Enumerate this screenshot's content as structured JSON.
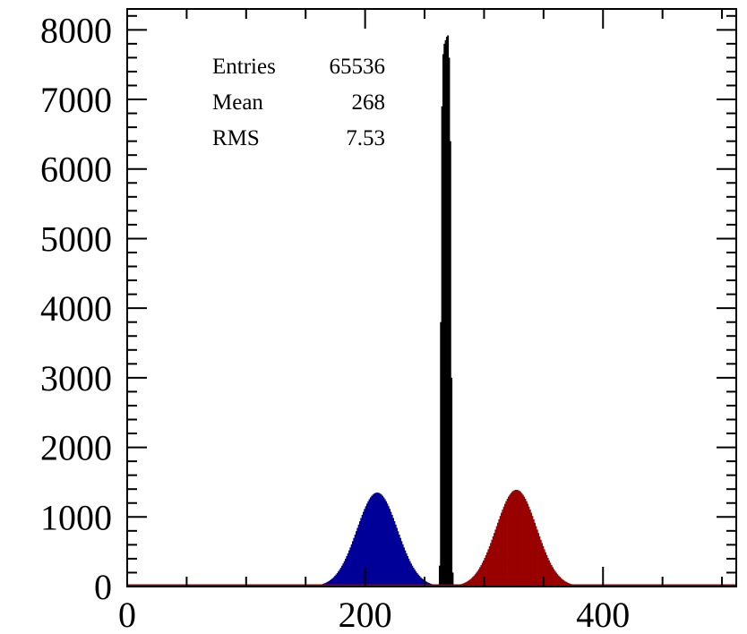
{
  "chart_data": {
    "type": "histogram",
    "xlim": [
      0,
      512
    ],
    "ylim": [
      0,
      8300
    ],
    "x_ticks": [
      0,
      200,
      400
    ],
    "x_tick_labels": [
      "0",
      "200",
      "400"
    ],
    "y_ticks": [
      0,
      1000,
      2000,
      3000,
      4000,
      5000,
      6000,
      7000,
      8000
    ],
    "y_tick_labels": [
      "0",
      "1000",
      "2000",
      "3000",
      "4000",
      "5000",
      "6000",
      "7000",
      "8000"
    ],
    "grid": false,
    "stats_box": [
      {
        "label": "Entries",
        "value": "65536"
      },
      {
        "label": "Mean",
        "value": "268"
      },
      {
        "label": "RMS",
        "value": "7.53"
      }
    ],
    "series": [
      {
        "color": "#000099",
        "shape": "gaussian",
        "mean": 210,
        "sigma": 17,
        "peak": 1350,
        "range": [
          155,
          262
        ]
      },
      {
        "color": "#990000",
        "shape": "gaussian",
        "mean": 327,
        "sigma": 17,
        "peak": 1390,
        "range": [
          272,
          385
        ]
      },
      {
        "color": "#000000",
        "shape": "bars",
        "x": [
          262,
          263,
          264,
          265,
          266,
          267,
          268,
          269,
          270,
          271,
          272,
          273
        ],
        "values": [
          300,
          3800,
          6900,
          7650,
          7800,
          7850,
          7900,
          7920,
          7600,
          6400,
          3000,
          200
        ]
      }
    ]
  }
}
